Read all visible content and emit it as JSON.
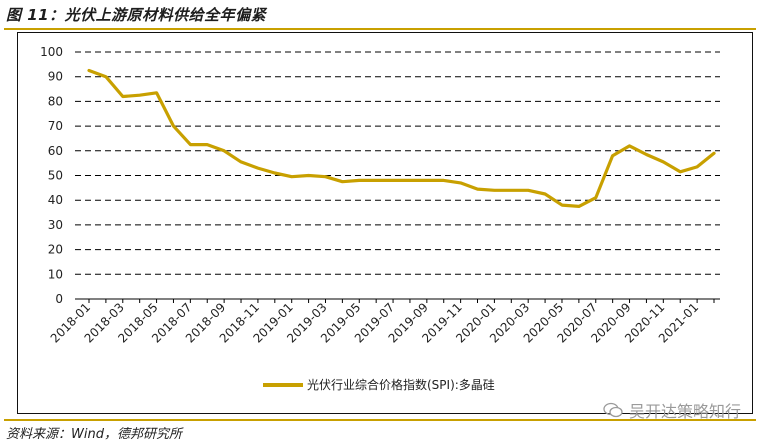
{
  "figure": {
    "title": "图 11：光伏上游原材料供给全年偏紧",
    "source": "资料来源：Wind，德邦研究所",
    "watermark": "吴开达策略知行"
  },
  "colors": {
    "series": "#c8a000",
    "accent_rule": "#c8a000",
    "grid": "#000000"
  },
  "chart_data": {
    "type": "line",
    "title": "",
    "xlabel": "",
    "ylabel": "",
    "ylim": [
      0,
      100
    ],
    "yticks": [
      0,
      10,
      20,
      30,
      40,
      50,
      60,
      70,
      80,
      90,
      100
    ],
    "grid": "horizontal dashed",
    "legend_position": "bottom",
    "x_tick_labels": [
      "2018-01",
      "2018-03",
      "2018-05",
      "2018-07",
      "2018-09",
      "2018-11",
      "2019-01",
      "2019-03",
      "2019-05",
      "2019-07",
      "2019-09",
      "2019-11",
      "2020-01",
      "2020-03",
      "2020-05",
      "2020-07",
      "2020-09",
      "2020-11",
      "2021-01"
    ],
    "x": [
      "2018-01",
      "2018-02",
      "2018-03",
      "2018-04",
      "2018-05",
      "2018-06",
      "2018-07",
      "2018-08",
      "2018-09",
      "2018-10",
      "2018-11",
      "2018-12",
      "2019-01",
      "2019-02",
      "2019-03",
      "2019-04",
      "2019-05",
      "2019-06",
      "2019-07",
      "2019-08",
      "2019-09",
      "2019-10",
      "2019-11",
      "2019-12",
      "2020-01",
      "2020-02",
      "2020-03",
      "2020-04",
      "2020-05",
      "2020-06",
      "2020-07",
      "2020-08",
      "2020-09",
      "2020-10",
      "2020-11",
      "2020-12",
      "2021-01",
      "2021-02"
    ],
    "series": [
      {
        "name": "光伏行业综合价格指数(SPI):多晶硅",
        "values": [
          92.5,
          90,
          82,
          82.5,
          83.5,
          70,
          62.5,
          62.5,
          60,
          55.5,
          53,
          51,
          49.5,
          50,
          49.5,
          47.5,
          48,
          48,
          48,
          48,
          48,
          48,
          47,
          44.5,
          44,
          44,
          44,
          42.5,
          38,
          37.5,
          41,
          58,
          62,
          58.5,
          55.5,
          51.5,
          53.5,
          59
        ]
      }
    ]
  }
}
